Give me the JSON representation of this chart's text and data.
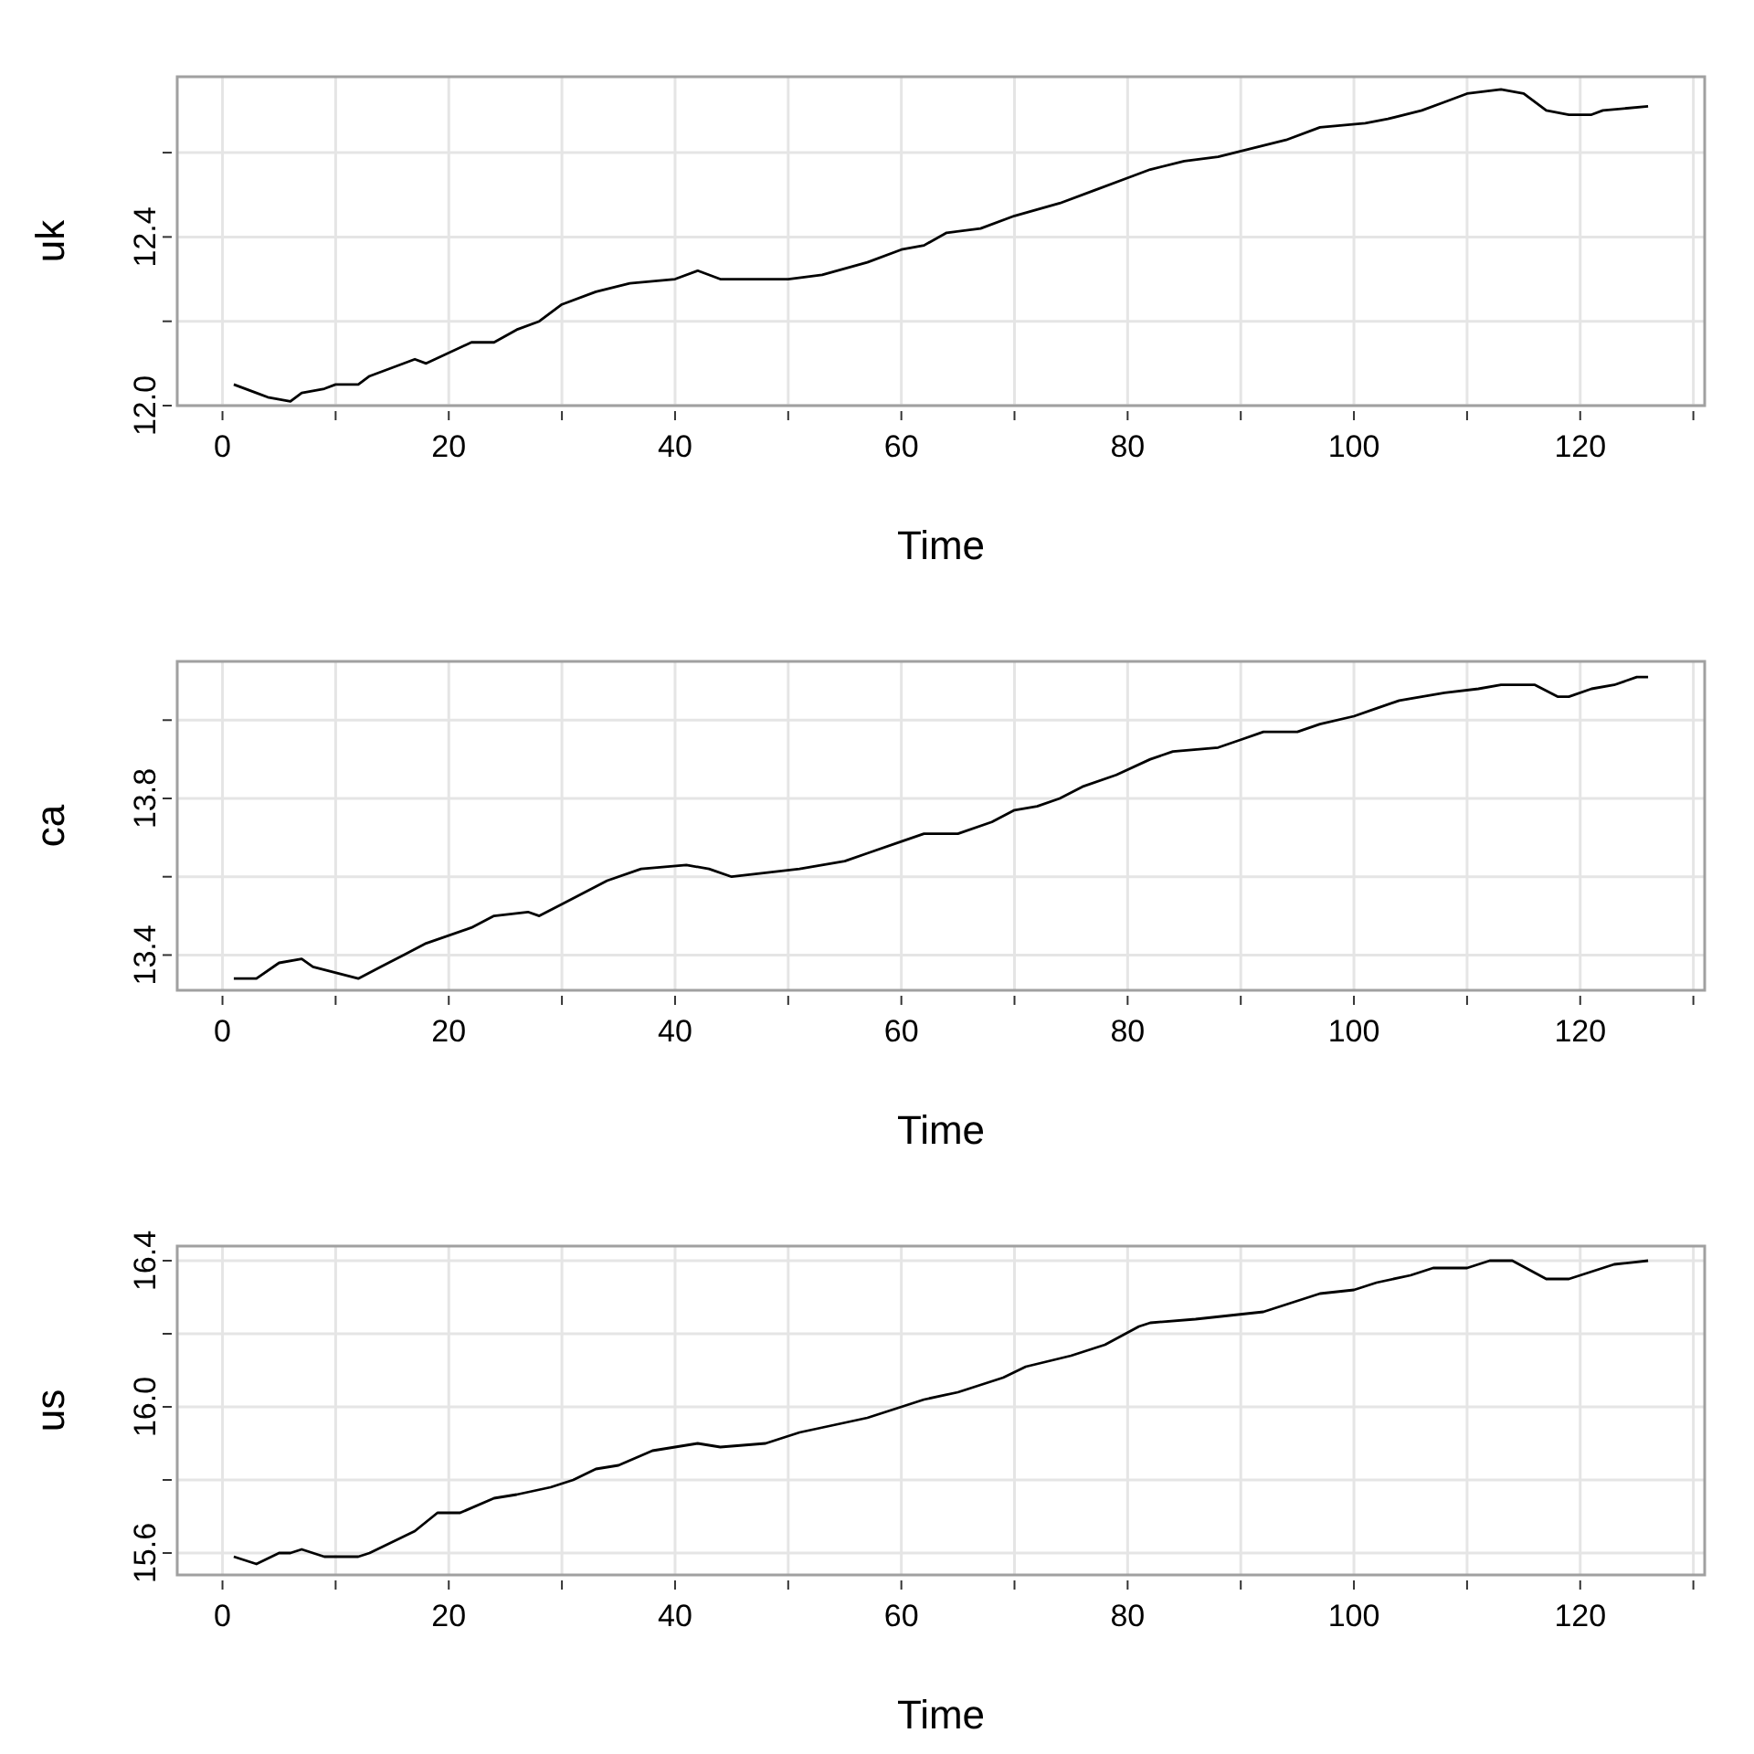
{
  "chart_data": [
    {
      "type": "line",
      "xlabel": "Time",
      "ylabel": "uk",
      "xlim": [
        -4,
        131
      ],
      "ylim": [
        12.0,
        12.78
      ],
      "grid": true,
      "xticks": [
        0,
        {
          "value": 10,
          "label": null
        },
        20,
        {
          "value": 30,
          "label": null
        },
        40,
        {
          "value": 50,
          "label": null
        },
        60,
        {
          "value": 70,
          "label": null
        },
        80,
        {
          "value": 90,
          "label": null
        },
        100,
        {
          "value": 110,
          "label": null
        },
        120,
        {
          "value": 130,
          "label": null
        }
      ],
      "yticks": [
        {
          "value": 12.0,
          "label": "12.0"
        },
        {
          "value": 12.2,
          "label": null
        },
        {
          "value": 12.4,
          "label": "12.4"
        },
        {
          "value": 12.6,
          "label": null
        }
      ],
      "series": [
        {
          "color": "#000000",
          "x": [
            1,
            3,
            4,
            6,
            7,
            9,
            10,
            12,
            13,
            17,
            18,
            22,
            24,
            26,
            28,
            30,
            33,
            36,
            40,
            42,
            44,
            46,
            50,
            53,
            57,
            60,
            62,
            64,
            67,
            70,
            74,
            77,
            80,
            82,
            85,
            88,
            91,
            94,
            97,
            101,
            103,
            106,
            108,
            110,
            113,
            115,
            117,
            119,
            121,
            122,
            126
          ],
          "values": [
            12.05,
            12.03,
            12.02,
            12.01,
            12.03,
            12.04,
            12.05,
            12.05,
            12.07,
            12.11,
            12.1,
            12.15,
            12.15,
            12.18,
            12.2,
            12.24,
            12.27,
            12.29,
            12.3,
            12.32,
            12.3,
            12.3,
            12.3,
            12.31,
            12.34,
            12.37,
            12.38,
            12.41,
            12.42,
            12.45,
            12.48,
            12.51,
            12.54,
            12.56,
            12.58,
            12.59,
            12.61,
            12.63,
            12.66,
            12.67,
            12.68,
            12.7,
            12.72,
            12.74,
            12.75,
            12.74,
            12.7,
            12.69,
            12.69,
            12.7,
            12.71
          ]
        }
      ]
    },
    {
      "type": "line",
      "xlabel": "Time",
      "ylabel": "ca",
      "xlim": [
        -4,
        131
      ],
      "ylim": [
        13.31,
        14.15
      ],
      "grid": true,
      "xticks": [
        0,
        {
          "value": 10,
          "label": null
        },
        20,
        {
          "value": 30,
          "label": null
        },
        40,
        {
          "value": 50,
          "label": null
        },
        60,
        {
          "value": 70,
          "label": null
        },
        80,
        {
          "value": 90,
          "label": null
        },
        100,
        {
          "value": 110,
          "label": null
        },
        120,
        {
          "value": 130,
          "label": null
        }
      ],
      "yticks": [
        {
          "value": 13.4,
          "label": "13.4"
        },
        {
          "value": 13.6,
          "label": null
        },
        {
          "value": 13.8,
          "label": "13.8"
        },
        {
          "value": 14.0,
          "label": null
        }
      ],
      "series": [
        {
          "color": "#000000",
          "x": [
            1,
            3,
            5,
            7,
            8,
            12,
            14,
            16,
            18,
            22,
            24,
            27,
            28,
            30,
            34,
            37,
            41,
            43,
            45,
            48,
            51,
            55,
            57,
            60,
            62,
            65,
            68,
            70,
            72,
            74,
            76,
            79,
            82,
            84,
            88,
            90,
            92,
            95,
            97,
            100,
            102,
            104,
            106,
            108,
            111,
            113,
            116,
            118,
            119,
            121,
            123,
            125,
            126
          ],
          "values": [
            13.34,
            13.34,
            13.38,
            13.39,
            13.37,
            13.34,
            13.37,
            13.4,
            13.43,
            13.47,
            13.5,
            13.51,
            13.5,
            13.53,
            13.59,
            13.62,
            13.63,
            13.62,
            13.6,
            13.61,
            13.62,
            13.64,
            13.66,
            13.69,
            13.71,
            13.71,
            13.74,
            13.77,
            13.78,
            13.8,
            13.83,
            13.86,
            13.9,
            13.92,
            13.93,
            13.95,
            13.97,
            13.97,
            13.99,
            14.01,
            14.03,
            14.05,
            14.06,
            14.07,
            14.08,
            14.09,
            14.09,
            14.06,
            14.06,
            14.08,
            14.09,
            14.11,
            14.11
          ]
        }
      ]
    },
    {
      "type": "line",
      "xlabel": "Time",
      "ylabel": "us",
      "xlim": [
        -4,
        131
      ],
      "ylim": [
        15.54,
        16.44
      ],
      "grid": true,
      "xticks": [
        0,
        {
          "value": 10,
          "label": null
        },
        20,
        {
          "value": 30,
          "label": null
        },
        40,
        {
          "value": 50,
          "label": null
        },
        60,
        {
          "value": 70,
          "label": null
        },
        80,
        {
          "value": 90,
          "label": null
        },
        100,
        {
          "value": 110,
          "label": null
        },
        120,
        {
          "value": 130,
          "label": null
        }
      ],
      "yticks": [
        {
          "value": 15.6,
          "label": "15.6"
        },
        {
          "value": 15.8,
          "label": null
        },
        {
          "value": 16.0,
          "label": "16.0"
        },
        {
          "value": 16.2,
          "label": null
        },
        {
          "value": 16.4,
          "label": "16.4"
        }
      ],
      "series": [
        {
          "color": "#000000",
          "x": [
            1,
            3,
            5,
            6,
            7,
            9,
            12,
            13,
            17,
            19,
            21,
            24,
            26,
            29,
            31,
            33,
            35,
            38,
            40,
            42,
            44,
            48,
            51,
            54,
            57,
            59,
            62,
            65,
            69,
            71,
            75,
            78,
            81,
            82,
            86,
            89,
            92,
            94,
            97,
            100,
            102,
            105,
            107,
            110,
            112,
            114,
            117,
            119,
            121,
            123,
            126
          ],
          "values": [
            15.59,
            15.57,
            15.6,
            15.6,
            15.61,
            15.59,
            15.59,
            15.6,
            15.66,
            15.71,
            15.71,
            15.75,
            15.76,
            15.78,
            15.8,
            15.83,
            15.84,
            15.88,
            15.89,
            15.9,
            15.89,
            15.9,
            15.93,
            15.95,
            15.97,
            15.99,
            16.02,
            16.04,
            16.08,
            16.11,
            16.14,
            16.17,
            16.22,
            16.23,
            16.24,
            16.25,
            16.26,
            16.28,
            16.31,
            16.32,
            16.34,
            16.36,
            16.38,
            16.38,
            16.4,
            16.4,
            16.35,
            16.35,
            16.37,
            16.39,
            16.4
          ]
        }
      ]
    }
  ]
}
